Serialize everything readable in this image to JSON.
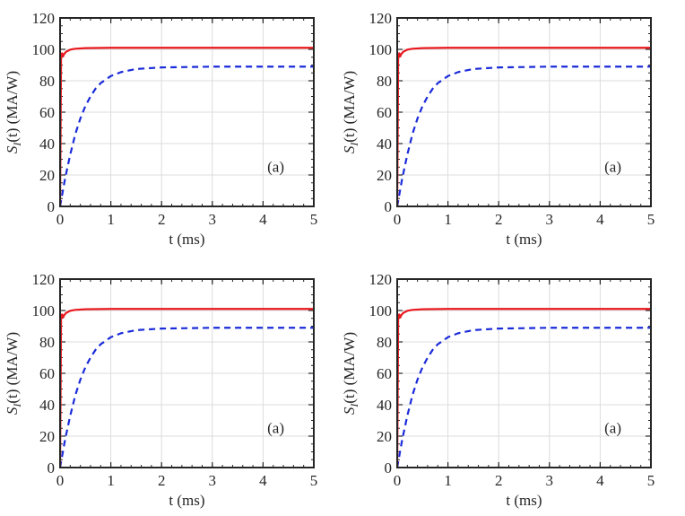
{
  "figure": {
    "background": "#ffffff"
  },
  "chart_data": [
    {
      "type": "line",
      "panel": "top-left",
      "annotation": "(a)",
      "xlabel": "t (ms)",
      "ylabel_main": "S",
      "ylabel_sub": "I",
      "ylabel_tail": "(t)  (MA/W)",
      "xlim": [
        0,
        5
      ],
      "ylim": [
        0,
        120
      ],
      "xticks": [
        0,
        1,
        2,
        3,
        4,
        5
      ],
      "yticks": [
        0,
        20,
        40,
        60,
        80,
        100,
        120
      ],
      "grid": true,
      "series": [
        {
          "name": "solid",
          "color": "#e8191f",
          "style": "solid",
          "x": [
            0,
            0.02,
            0.04,
            0.06,
            0.08,
            0.12,
            0.2,
            0.3,
            0.5,
            1,
            2,
            3,
            4,
            5
          ],
          "y": [
            0,
            97,
            97.5,
            95.5,
            97,
            98.5,
            99.8,
            100.4,
            100.8,
            101,
            101,
            101,
            101,
            101
          ]
        },
        {
          "name": "dashed",
          "color": "#1a2bd9",
          "style": "dashed",
          "x": [
            0,
            0.1,
            0.2,
            0.3,
            0.4,
            0.5,
            0.6,
            0.7,
            0.8,
            1,
            1.2,
            1.5,
            2,
            3,
            4,
            5
          ],
          "y": [
            0,
            18,
            33,
            46,
            56,
            64,
            70,
            75,
            78.5,
            83,
            85.5,
            87.5,
            88.5,
            89,
            89,
            89
          ]
        }
      ]
    },
    {
      "type": "line",
      "panel": "top-right",
      "annotation": "(a)",
      "xlabel": "t (ms)",
      "ylabel_main": "S",
      "ylabel_sub": "I",
      "ylabel_tail": "(t)  (MA/W)",
      "xlim": [
        0,
        5
      ],
      "ylim": [
        0,
        120
      ],
      "xticks": [
        0,
        1,
        2,
        3,
        4,
        5
      ],
      "yticks": [
        0,
        20,
        40,
        60,
        80,
        100,
        120
      ],
      "grid": true,
      "series": [
        {
          "name": "solid",
          "color": "#e8191f",
          "style": "solid",
          "x": [
            0,
            0.02,
            0.04,
            0.06,
            0.08,
            0.12,
            0.2,
            0.3,
            0.5,
            1,
            2,
            3,
            4,
            5
          ],
          "y": [
            0,
            97,
            97.5,
            95.5,
            97,
            98.5,
            99.8,
            100.4,
            100.8,
            101,
            101,
            101,
            101,
            101
          ]
        },
        {
          "name": "dashed",
          "color": "#1a2bd9",
          "style": "dashed",
          "x": [
            0,
            0.1,
            0.2,
            0.3,
            0.4,
            0.5,
            0.6,
            0.7,
            0.8,
            1,
            1.2,
            1.5,
            2,
            3,
            4,
            5
          ],
          "y": [
            0,
            18,
            33,
            46,
            56,
            64,
            70,
            75,
            78.5,
            83,
            85.5,
            87.5,
            88.5,
            89,
            89,
            89
          ]
        }
      ]
    },
    {
      "type": "line",
      "panel": "bottom-left",
      "annotation": "(a)",
      "xlabel": "t (ms)",
      "ylabel_main": "S",
      "ylabel_sub": "I",
      "ylabel_tail": "(t)  (MA/W)",
      "xlim": [
        0,
        5
      ],
      "ylim": [
        0,
        120
      ],
      "xticks": [
        0,
        1,
        2,
        3,
        4,
        5
      ],
      "yticks": [
        0,
        20,
        40,
        60,
        80,
        100,
        120
      ],
      "grid": true,
      "series": [
        {
          "name": "solid",
          "color": "#e8191f",
          "style": "solid",
          "x": [
            0,
            0.02,
            0.04,
            0.06,
            0.08,
            0.12,
            0.2,
            0.3,
            0.5,
            1,
            2,
            3,
            4,
            5
          ],
          "y": [
            0,
            97,
            97.5,
            95.5,
            97,
            98.5,
            99.8,
            100.4,
            100.8,
            101,
            101,
            101,
            101,
            101
          ]
        },
        {
          "name": "dashed",
          "color": "#1a2bd9",
          "style": "dashed",
          "x": [
            0,
            0.1,
            0.2,
            0.3,
            0.4,
            0.5,
            0.6,
            0.7,
            0.8,
            1,
            1.2,
            1.5,
            2,
            3,
            4,
            5
          ],
          "y": [
            0,
            18,
            33,
            46,
            56,
            64,
            70,
            75,
            78.5,
            83,
            85.5,
            87.5,
            88.5,
            89,
            89,
            89
          ]
        }
      ]
    },
    {
      "type": "line",
      "panel": "bottom-right",
      "annotation": "(a)",
      "xlabel": "t (ms)",
      "ylabel_main": "S",
      "ylabel_sub": "I",
      "ylabel_tail": "(t)  (MA/W)",
      "xlim": [
        0,
        5
      ],
      "ylim": [
        0,
        120
      ],
      "xticks": [
        0,
        1,
        2,
        3,
        4,
        5
      ],
      "yticks": [
        0,
        20,
        40,
        60,
        80,
        100,
        120
      ],
      "grid": true,
      "series": [
        {
          "name": "solid",
          "color": "#e8191f",
          "style": "solid",
          "x": [
            0,
            0.02,
            0.04,
            0.06,
            0.08,
            0.12,
            0.2,
            0.3,
            0.5,
            1,
            2,
            3,
            4,
            5
          ],
          "y": [
            0,
            97,
            97.5,
            95.5,
            97,
            98.5,
            99.8,
            100.4,
            100.8,
            101,
            101,
            101,
            101,
            101
          ]
        },
        {
          "name": "dashed",
          "color": "#1a2bd9",
          "style": "dashed",
          "x": [
            0,
            0.1,
            0.2,
            0.3,
            0.4,
            0.5,
            0.6,
            0.7,
            0.8,
            1,
            1.2,
            1.5,
            2,
            3,
            4,
            5
          ],
          "y": [
            0,
            18,
            33,
            46,
            56,
            64,
            70,
            75,
            78.5,
            83,
            85.5,
            87.5,
            88.5,
            89,
            89,
            89
          ]
        }
      ]
    }
  ]
}
